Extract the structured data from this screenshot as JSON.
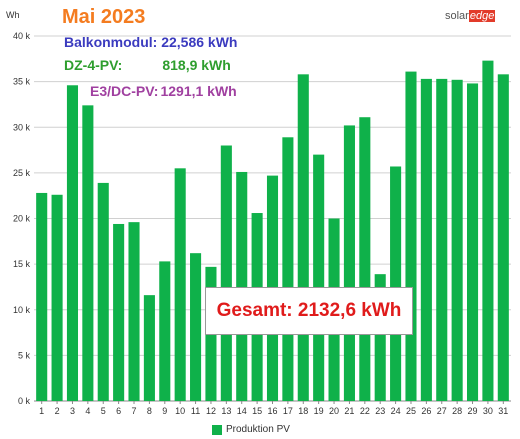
{
  "header": {
    "title": "Mai 2023",
    "line1": "Balkonmodul: 22,586 kWh",
    "line2_label": "DZ-4-PV:",
    "line2_value": "818,9 kWh",
    "line3_label": "E3/DC-PV:",
    "line3_value": "1291,1 kWh",
    "total": "Gesamt: 2132,6 kWh",
    "logo_part1": "solar",
    "logo_part2": "edge"
  },
  "colors": {
    "title": "#f47c20",
    "line1": "#3b3bbf",
    "line2": "#2e9e2e",
    "line3": "#a040a0",
    "total": "#e01b1b",
    "bar": "#0fb14a",
    "grid": "#d0d0d0"
  },
  "chart_data": {
    "type": "bar",
    "y_unit": "Wh",
    "ylim": [
      0,
      40
    ],
    "y_ticks": [
      "0 k",
      "5 k",
      "10 k",
      "15 k",
      "20 k",
      "25 k",
      "30 k",
      "35 k",
      "40 k"
    ],
    "categories": [
      "1",
      "2",
      "3",
      "4",
      "5",
      "6",
      "7",
      "8",
      "9",
      "10",
      "11",
      "12",
      "13",
      "14",
      "15",
      "16",
      "17",
      "18",
      "19",
      "20",
      "21",
      "22",
      "23",
      "24",
      "25",
      "26",
      "27",
      "28",
      "29",
      "30",
      "31"
    ],
    "series": [
      {
        "name": "Produktion PV",
        "values": [
          22.8,
          22.6,
          34.6,
          32.4,
          23.9,
          19.4,
          19.6,
          11.6,
          15.3,
          25.5,
          16.2,
          14.7,
          28.0,
          25.1,
          20.6,
          24.7,
          28.9,
          35.8,
          27.0,
          20.0,
          30.2,
          31.1,
          13.9,
          25.7,
          36.1,
          35.3,
          35.3,
          35.2,
          34.8,
          37.3,
          35.8
        ]
      }
    ],
    "grid": true,
    "legend": "bottom"
  }
}
